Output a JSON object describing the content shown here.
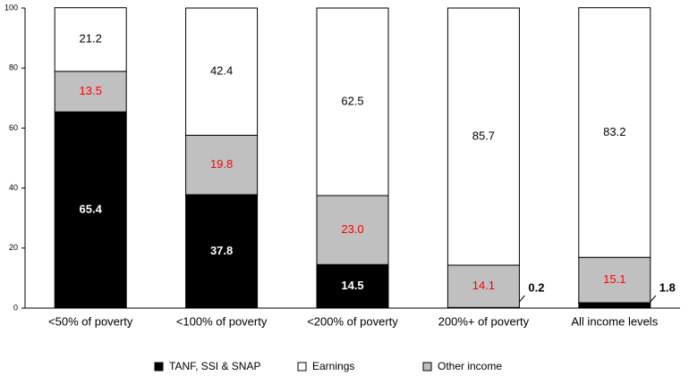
{
  "chart_data": {
    "type": "stacked-bar",
    "categories": [
      "<50% of poverty",
      "<100% of poverty",
      "<200% of poverty",
      "200%+ of poverty",
      "All income levels"
    ],
    "series": [
      {
        "name": "TANF, SSI & SNAP",
        "color": "#000000",
        "label_color": "#ffffff",
        "values": [
          65.4,
          37.8,
          14.5,
          0.2,
          1.8
        ]
      },
      {
        "name": "Other income",
        "color": "#c0c0c0",
        "label_color": "#ff0000",
        "values": [
          13.5,
          19.8,
          23.0,
          14.1,
          15.1
        ],
        "value_labels": [
          "13.5",
          "19.8",
          "23.0",
          "14.1",
          "15.1"
        ]
      },
      {
        "name": "Earnings",
        "color": "#ffffff",
        "label_color": "#000000",
        "values": [
          21.2,
          42.4,
          62.5,
          85.7,
          83.2
        ]
      }
    ],
    "ylim": [
      0,
      100
    ],
    "yticks": [
      0,
      20,
      40,
      60,
      80,
      100
    ],
    "grid": false
  }
}
